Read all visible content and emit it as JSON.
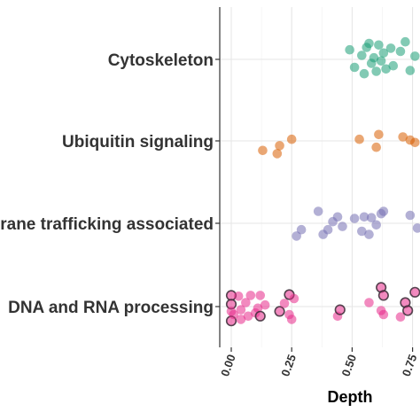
{
  "chart_data": {
    "type": "scatter",
    "subtype": "jittered strip plot",
    "xlabel": "Depth",
    "x_ticks": [
      "0.00",
      "0.25",
      "0.50",
      "0.75"
    ],
    "x_tick_values": [
      0.0,
      0.25,
      0.5,
      0.75
    ],
    "xlim": [
      -0.04,
      0.8
    ],
    "grid": true,
    "legend": "none",
    "categories": [
      "DNA and RNA processing",
      "Membrane trafficking associated",
      "Ubiquitin signaling",
      "Cytoskeleton"
    ],
    "category_labels_visible": [
      "DNA and RNA processing",
      "rane trafficking associated",
      "Ubiquitin signaling",
      "Cytoskeleton"
    ],
    "series": [
      {
        "category": "Cytoskeleton",
        "color": "#1b9e77",
        "points": [
          {
            "x": 0.49,
            "j": 0.12
          },
          {
            "x": 0.51,
            "j": -0.1
          },
          {
            "x": 0.54,
            "j": 0.05
          },
          {
            "x": 0.55,
            "j": -0.18
          },
          {
            "x": 0.56,
            "j": 0.15
          },
          {
            "x": 0.57,
            "j": 0.2
          },
          {
            "x": 0.58,
            "j": -0.05
          },
          {
            "x": 0.59,
            "j": 0.02
          },
          {
            "x": 0.6,
            "j": -0.15
          },
          {
            "x": 0.61,
            "j": 0.18
          },
          {
            "x": 0.62,
            "j": -0.02
          },
          {
            "x": 0.63,
            "j": 0.08
          },
          {
            "x": 0.64,
            "j": -0.12
          },
          {
            "x": 0.66,
            "j": 0.14
          },
          {
            "x": 0.67,
            "j": -0.08
          },
          {
            "x": 0.7,
            "j": 0.1
          },
          {
            "x": 0.72,
            "j": 0.22
          },
          {
            "x": 0.74,
            "j": -0.14
          },
          {
            "x": 0.76,
            "j": 0.04
          }
        ]
      },
      {
        "category": "Ubiquitin signaling",
        "color": "#d95f02",
        "points": [
          {
            "x": 0.13,
            "j": -0.12
          },
          {
            "x": 0.19,
            "j": -0.16
          },
          {
            "x": 0.2,
            "j": -0.06
          },
          {
            "x": 0.25,
            "j": 0.02
          },
          {
            "x": 0.53,
            "j": 0.02
          },
          {
            "x": 0.6,
            "j": -0.08
          },
          {
            "x": 0.61,
            "j": 0.08
          },
          {
            "x": 0.71,
            "j": 0.05
          },
          {
            "x": 0.74,
            "j": 0.01
          },
          {
            "x": 0.76,
            "j": -0.02
          }
        ]
      },
      {
        "category": "Membrane trafficking associated",
        "color": "#7570b3",
        "points": [
          {
            "x": 0.27,
            "j": -0.16
          },
          {
            "x": 0.29,
            "j": -0.08
          },
          {
            "x": 0.36,
            "j": 0.15
          },
          {
            "x": 0.38,
            "j": -0.14
          },
          {
            "x": 0.4,
            "j": -0.08
          },
          {
            "x": 0.42,
            "j": 0.02
          },
          {
            "x": 0.44,
            "j": 0.08
          },
          {
            "x": 0.46,
            "j": -0.04
          },
          {
            "x": 0.51,
            "j": 0.06
          },
          {
            "x": 0.54,
            "j": -0.1
          },
          {
            "x": 0.55,
            "j": 0.08
          },
          {
            "x": 0.57,
            "j": -0.14
          },
          {
            "x": 0.58,
            "j": 0.07
          },
          {
            "x": 0.6,
            "j": -0.02
          },
          {
            "x": 0.62,
            "j": 0.12
          },
          {
            "x": 0.63,
            "j": 0.15
          },
          {
            "x": 0.74,
            "j": 0.1
          },
          {
            "x": 0.77,
            "j": -0.06
          }
        ]
      },
      {
        "category": "DNA and RNA processing",
        "color": "#e7298a",
        "points": [
          {
            "x": 0.0,
            "j": 0.14,
            "o": true
          },
          {
            "x": 0.0,
            "j": 0.03,
            "o": true
          },
          {
            "x": 0.0,
            "j": -0.06
          },
          {
            "x": 0.0,
            "j": -0.18,
            "o": true
          },
          {
            "x": 0.01,
            "j": -0.1
          },
          {
            "x": 0.03,
            "j": 0.13
          },
          {
            "x": 0.04,
            "j": -0.04
          },
          {
            "x": 0.04,
            "j": -0.16
          },
          {
            "x": 0.06,
            "j": 0.05
          },
          {
            "x": 0.07,
            "j": -0.12
          },
          {
            "x": 0.08,
            "j": 0.14
          },
          {
            "x": 0.1,
            "j": -0.08
          },
          {
            "x": 0.11,
            "j": -0.02
          },
          {
            "x": 0.12,
            "j": 0.14
          },
          {
            "x": 0.12,
            "j": -0.12,
            "o": true
          },
          {
            "x": 0.14,
            "j": 0.02
          },
          {
            "x": 0.2,
            "j": -0.06,
            "o": true
          },
          {
            "x": 0.22,
            "j": 0.04
          },
          {
            "x": 0.24,
            "j": -0.1
          },
          {
            "x": 0.24,
            "j": 0.15,
            "o": true
          },
          {
            "x": 0.25,
            "j": -0.16
          },
          {
            "x": 0.26,
            "j": 0.1
          },
          {
            "x": 0.44,
            "j": -0.12
          },
          {
            "x": 0.45,
            "j": -0.04,
            "o": true
          },
          {
            "x": 0.57,
            "j": 0.05
          },
          {
            "x": 0.62,
            "j": -0.05
          },
          {
            "x": 0.62,
            "j": 0.24,
            "o": true
          },
          {
            "x": 0.63,
            "j": 0.14,
            "o": true
          },
          {
            "x": 0.63,
            "j": -0.1
          },
          {
            "x": 0.7,
            "j": -0.13
          },
          {
            "x": 0.72,
            "j": 0.05,
            "o": true
          },
          {
            "x": 0.73,
            "j": -0.05,
            "o": true
          },
          {
            "x": 0.76,
            "j": 0.18,
            "o": true
          }
        ]
      }
    ]
  }
}
